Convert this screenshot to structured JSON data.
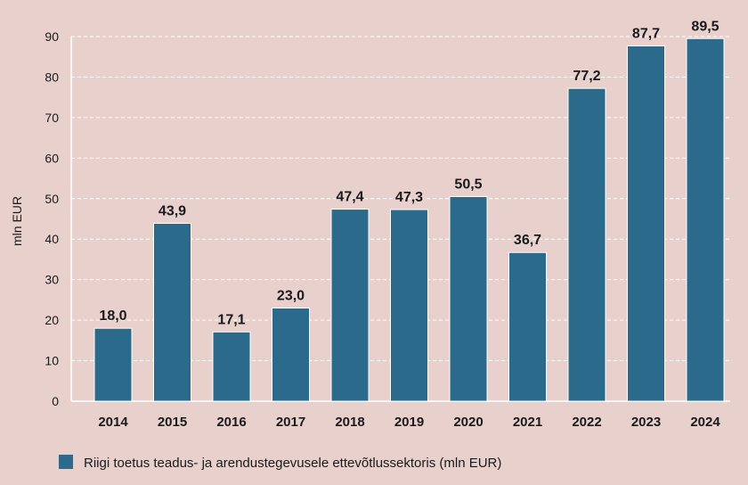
{
  "chart_data": {
    "type": "bar",
    "categories": [
      "2014",
      "2015",
      "2016",
      "2017",
      "2018",
      "2019",
      "2020",
      "2021",
      "2022",
      "2023",
      "2024"
    ],
    "series": [
      {
        "name": "Riigi toetus teadus- ja arendustegevusele ettevõtlussektoris (mln EUR)",
        "values": [
          18.0,
          43.9,
          17.1,
          23.0,
          47.4,
          47.3,
          50.5,
          36.7,
          77.2,
          87.7,
          89.5
        ],
        "labels": [
          "18,0",
          "43,9",
          "17,1",
          "23,0",
          "47,4",
          "47,3",
          "50,5",
          "36,7",
          "77,2",
          "87,7",
          "89,5"
        ]
      }
    ],
    "ylabel": "mln EUR",
    "xlabel": "",
    "ylim": [
      0,
      90
    ],
    "yticks": [
      0,
      10,
      20,
      30,
      40,
      50,
      60,
      70,
      80,
      90
    ],
    "grid": true,
    "legend": "bottom-left",
    "colors": {
      "bar": "#2b6a8a",
      "background": "#e8d0cd",
      "grid": "#ffffff"
    }
  }
}
